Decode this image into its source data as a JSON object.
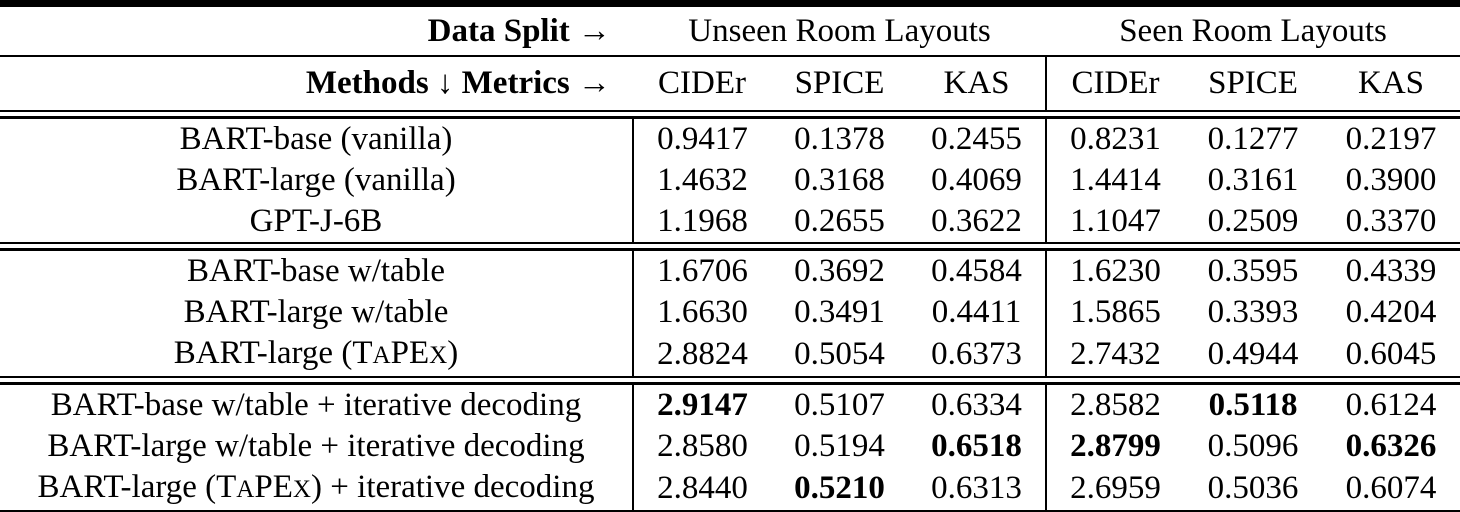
{
  "colors": {
    "text": "#000000",
    "background": "#ffffff",
    "rule": "#000000"
  },
  "table": {
    "header": {
      "data_split_label": "Data Split →",
      "split_headers": [
        "Unseen Room Layouts",
        "Seen Room Layouts"
      ],
      "methods_metrics_label": "Methods ↓ Metrics →",
      "metric_headers": [
        "CIDEr",
        "SPICE",
        "KAS",
        "CIDEr",
        "SPICE",
        "KAS"
      ]
    },
    "groups": [
      {
        "rows": [
          {
            "method_parts": [
              {
                "t": "BART-base (vanilla)"
              }
            ],
            "values": [
              "0.9417",
              "0.1378",
              "0.2455",
              "0.8231",
              "0.1277",
              "0.2197"
            ],
            "bold": [
              false,
              false,
              false,
              false,
              false,
              false
            ]
          },
          {
            "method_parts": [
              {
                "t": "BART-large (vanilla)"
              }
            ],
            "values": [
              "1.4632",
              "0.3168",
              "0.4069",
              "1.4414",
              "0.3161",
              "0.3900"
            ],
            "bold": [
              false,
              false,
              false,
              false,
              false,
              false
            ]
          },
          {
            "method_parts": [
              {
                "t": "GPT-J-6B"
              }
            ],
            "values": [
              "1.1968",
              "0.2655",
              "0.3622",
              "1.1047",
              "0.2509",
              "0.3370"
            ],
            "bold": [
              false,
              false,
              false,
              false,
              false,
              false
            ]
          }
        ]
      },
      {
        "rows": [
          {
            "method_parts": [
              {
                "t": "BART-base w/table"
              }
            ],
            "values": [
              "1.6706",
              "0.3692",
              "0.4584",
              "1.6230",
              "0.3595",
              "0.4339"
            ],
            "bold": [
              false,
              false,
              false,
              false,
              false,
              false
            ]
          },
          {
            "method_parts": [
              {
                "t": "BART-large w/table"
              }
            ],
            "values": [
              "1.6630",
              "0.3491",
              "0.4411",
              "1.5865",
              "0.3393",
              "0.4204"
            ],
            "bold": [
              false,
              false,
              false,
              false,
              false,
              false
            ]
          },
          {
            "method_parts": [
              {
                "t": "BART-large (T"
              },
              {
                "t": "A",
                "sc": true
              },
              {
                "t": "PE"
              },
              {
                "t": "X",
                "sc": true
              },
              {
                "t": ")"
              }
            ],
            "values": [
              "2.8824",
              "0.5054",
              "0.6373",
              "2.7432",
              "0.4944",
              "0.6045"
            ],
            "bold": [
              false,
              false,
              false,
              false,
              false,
              false
            ]
          }
        ]
      },
      {
        "rows": [
          {
            "method_parts": [
              {
                "t": "BART-base w/table + iterative decoding"
              }
            ],
            "values": [
              "2.9147",
              "0.5107",
              "0.6334",
              "2.8582",
              "0.5118",
              "0.6124"
            ],
            "bold": [
              true,
              false,
              false,
              false,
              true,
              false
            ]
          },
          {
            "method_parts": [
              {
                "t": "BART-large w/table + iterative decoding"
              }
            ],
            "values": [
              "2.8580",
              "0.5194",
              "0.6518",
              "2.8799",
              "0.5096",
              "0.6326"
            ],
            "bold": [
              false,
              false,
              true,
              true,
              false,
              true
            ]
          },
          {
            "method_parts": [
              {
                "t": "BART-large (T"
              },
              {
                "t": "A",
                "sc": true
              },
              {
                "t": "PE"
              },
              {
                "t": "X",
                "sc": true
              },
              {
                "t": ") + iterative decoding"
              }
            ],
            "values": [
              "2.8440",
              "0.5210",
              "0.6313",
              "2.6959",
              "0.5036",
              "0.6074"
            ],
            "bold": [
              false,
              true,
              false,
              false,
              false,
              false
            ]
          }
        ]
      }
    ]
  }
}
